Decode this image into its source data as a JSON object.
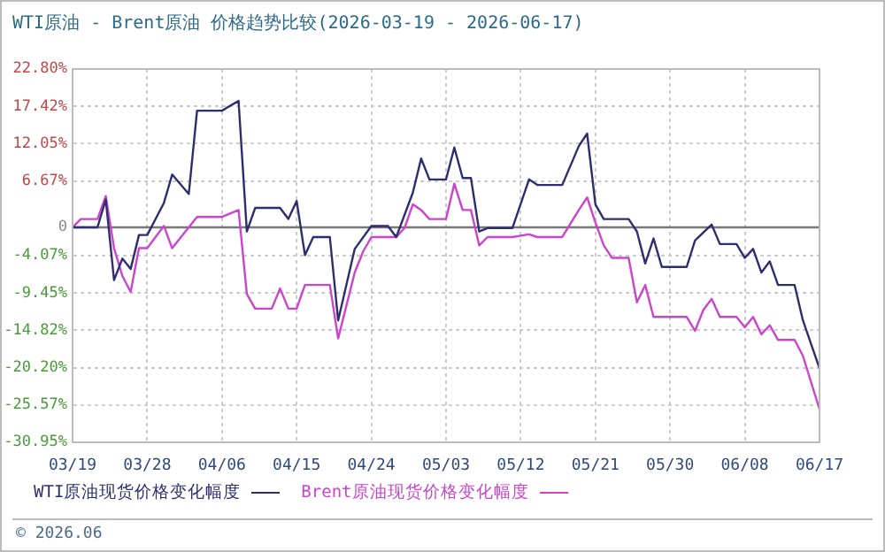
{
  "chart_data": {
    "type": "line",
    "title": "WTI原油 - Brent原油 价格趋势比较(2026-03-19 - 2026-06-17)",
    "annotations": [
      "© 2026.06"
    ],
    "series": [
      {
        "name": "WTI原油现货价格变化幅度",
        "color": "#2e2e6e",
        "x": [
          "2026-03-19",
          "2026-03-22",
          "2026-03-23",
          "2026-03-24",
          "2026-03-25",
          "2026-03-26",
          "2026-03-27",
          "2026-03-28",
          "2026-03-30",
          "2026-03-31",
          "2026-04-02",
          "2026-04-03",
          "2026-04-06",
          "2026-04-08",
          "2026-04-09",
          "2026-04-10",
          "2026-04-13",
          "2026-04-14",
          "2026-04-15",
          "2026-04-16",
          "2026-04-17",
          "2026-04-19",
          "2026-04-20",
          "2026-04-22",
          "2026-04-24",
          "2026-04-26",
          "2026-04-27",
          "2026-04-29",
          "2026-04-30",
          "2026-05-01",
          "2026-05-03",
          "2026-05-04",
          "2026-05-05",
          "2026-05-06",
          "2026-05-07",
          "2026-05-08",
          "2026-05-11",
          "2026-05-13",
          "2026-05-14",
          "2026-05-17",
          "2026-05-19",
          "2026-05-20",
          "2026-05-21",
          "2026-05-22",
          "2026-05-25",
          "2026-05-26",
          "2026-05-27",
          "2026-05-28",
          "2026-05-29",
          "2026-06-01",
          "2026-06-02",
          "2026-06-04",
          "2026-06-05",
          "2026-06-07",
          "2026-06-08",
          "2026-06-09",
          "2026-06-10",
          "2026-06-11",
          "2026-06-12",
          "2026-06-14",
          "2026-06-15",
          "2026-06-17"
        ],
        "values": [
          0,
          0,
          4.0,
          -7.6,
          -4.5,
          -6.0,
          -1.1,
          -1.1,
          3.5,
          7.6,
          4.8,
          16.8,
          16.8,
          18.2,
          -0.6,
          2.8,
          2.8,
          1.2,
          3.8,
          -4.0,
          -1.4,
          -1.4,
          -13.4,
          -3.1,
          0.2,
          0.2,
          -1.4,
          5.0,
          9.9,
          6.9,
          6.9,
          11.5,
          7.1,
          7.1,
          -0.6,
          -0.1,
          -0.1,
          6.9,
          6.1,
          6.1,
          11.7,
          13.5,
          3.3,
          1.2,
          1.2,
          -0.6,
          -5.2,
          -1.6,
          -5.7,
          -5.7,
          -1.9,
          0.4,
          -2.4,
          -2.4,
          -4.4,
          -3.1,
          -6.5,
          -4.9,
          -8.3,
          -8.3,
          -13.4,
          -20.3
        ]
      },
      {
        "name": "Brent原油现货价格变化幅度",
        "color": "#cc44cc",
        "x": [
          "2026-03-19",
          "2026-03-20",
          "2026-03-22",
          "2026-03-23",
          "2026-03-24",
          "2026-03-25",
          "2026-03-26",
          "2026-03-27",
          "2026-03-28",
          "2026-03-30",
          "2026-03-31",
          "2026-04-03",
          "2026-04-06",
          "2026-04-08",
          "2026-04-09",
          "2026-04-10",
          "2026-04-12",
          "2026-04-13",
          "2026-04-14",
          "2026-04-15",
          "2026-04-16",
          "2026-04-19",
          "2026-04-20",
          "2026-04-22",
          "2026-04-23",
          "2026-04-24",
          "2026-04-27",
          "2026-04-28",
          "2026-04-29",
          "2026-04-30",
          "2026-05-01",
          "2026-05-03",
          "2026-05-04",
          "2026-05-05",
          "2026-05-06",
          "2026-05-07",
          "2026-05-08",
          "2026-05-11",
          "2026-05-13",
          "2026-05-14",
          "2026-05-17",
          "2026-05-19",
          "2026-05-20",
          "2026-05-21",
          "2026-05-22",
          "2026-05-23",
          "2026-05-25",
          "2026-05-26",
          "2026-05-27",
          "2026-05-28",
          "2026-06-01",
          "2026-06-02",
          "2026-06-03",
          "2026-06-04",
          "2026-06-05",
          "2026-06-07",
          "2026-06-08",
          "2026-06-09",
          "2026-06-10",
          "2026-06-11",
          "2026-06-12",
          "2026-06-14",
          "2026-06-15",
          "2026-06-17"
        ],
        "values": [
          0,
          1.2,
          1.2,
          4.5,
          -3.0,
          -7.0,
          -9.3,
          -3.0,
          -3.0,
          0.2,
          -3.0,
          1.5,
          1.5,
          2.5,
          -9.6,
          -11.7,
          -11.7,
          -8.8,
          -11.7,
          -11.7,
          -8.3,
          -8.3,
          -16.0,
          -6.5,
          -3.5,
          -1.4,
          -1.4,
          -0.1,
          3.3,
          2.5,
          1.2,
          1.2,
          6.3,
          2.5,
          2.5,
          -2.6,
          -1.4,
          -1.4,
          -1.0,
          -1.4,
          -1.4,
          2.5,
          4.3,
          0.7,
          -2.6,
          -4.4,
          -4.4,
          -10.8,
          -8.3,
          -12.9,
          -12.9,
          -14.9,
          -11.9,
          -10.3,
          -12.9,
          -12.9,
          -14.4,
          -12.9,
          -15.4,
          -14.1,
          -16.2,
          -16.2,
          -18.5,
          -26.2
        ]
      }
    ],
    "ylim": [
      -30.95,
      22.8
    ],
    "yticks": [
      {
        "value": 22.8,
        "label": "22.80%"
      },
      {
        "value": 17.42,
        "label": "17.42%"
      },
      {
        "value": 12.05,
        "label": "12.05%"
      },
      {
        "value": 6.67,
        "label": "6.67%"
      },
      0,
      {
        "value": -4.07,
        "label": "-4.07%"
      },
      {
        "value": -9.45,
        "label": "-9.45%"
      },
      {
        "value": -14.82,
        "label": "-14.82%"
      },
      {
        "value": -20.2,
        "label": "-20.20%"
      },
      {
        "value": -25.57,
        "label": "-25.57%"
      },
      {
        "value": -30.95,
        "label": "-30.95%"
      }
    ],
    "xlim": [
      "2026-03-19",
      "2026-06-17"
    ],
    "xticks": [
      {
        "value": "2026-03-19",
        "label": "03/19"
      },
      {
        "value": "2026-03-28",
        "label": "03/28"
      },
      {
        "value": "2026-04-06",
        "label": "04/06"
      },
      {
        "value": "2026-04-15",
        "label": "04/15"
      },
      {
        "value": "2026-04-24",
        "label": "04/24"
      },
      {
        "value": "2026-05-03",
        "label": "05/03"
      },
      {
        "value": "2026-05-12",
        "label": "05/12"
      },
      {
        "value": "2026-05-21",
        "label": "05/21"
      },
      {
        "value": "2026-05-30",
        "label": "05/30"
      },
      {
        "value": "2026-06-08",
        "label": "06/08"
      },
      {
        "value": "2026-06-17",
        "label": "06/17"
      }
    ],
    "ref_lines": [
      {
        "axis": "y",
        "value": 0,
        "color": "#777777"
      }
    ],
    "grid": true,
    "legend": "bottom",
    "marker": "none",
    "line_style": "solid"
  }
}
